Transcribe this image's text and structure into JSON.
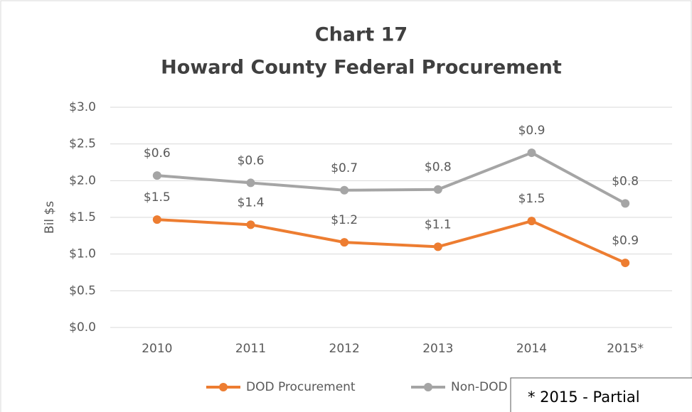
{
  "chart_data": {
    "type": "line",
    "stacked": true,
    "title": "Chart 17",
    "subtitle": "Howard County Federal Procurement",
    "y_label": "Bil $s",
    "note": "* 2015 - Partial",
    "categories": [
      "2010",
      "2011",
      "2012",
      "2013",
      "2014",
      "2015*"
    ],
    "series": [
      {
        "name": "DOD Procurement",
        "color": "#ed7d31",
        "values": [
          1.47,
          1.4,
          1.16,
          1.1,
          1.45,
          0.88
        ],
        "value_labels": [
          "$1.5",
          "$1.4",
          "$1.2",
          "$1.1",
          "$1.5",
          "$0.9"
        ]
      },
      {
        "name": "Non-DOD",
        "color": "#a5a5a5",
        "values": [
          0.6,
          0.57,
          0.71,
          0.78,
          0.93,
          0.81
        ],
        "value_labels": [
          "$0.6",
          "$0.6",
          "$0.7",
          "$0.8",
          "$0.9",
          "$0.8"
        ]
      }
    ],
    "ylim": [
      0,
      3
    ],
    "yticks": [
      {
        "value": 0,
        "label": "$0.0"
      },
      {
        "value": 0.5,
        "label": "$0.5"
      },
      {
        "value": 1,
        "label": "$1.0"
      },
      {
        "value": 1.5,
        "label": "$1.5"
      },
      {
        "value": 2,
        "label": "$2.0"
      },
      {
        "value": 2.5,
        "label": "$2.5"
      },
      {
        "value": 3,
        "label": "$3.0"
      }
    ],
    "grid": true,
    "legend": "bottom"
  }
}
